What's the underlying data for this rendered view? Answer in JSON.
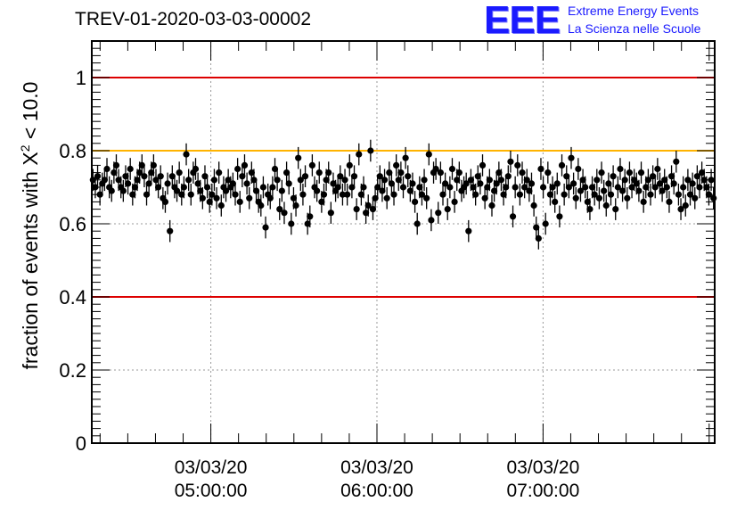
{
  "title": "TREV-01-2020-03-03-00002",
  "logo": {
    "mark": "EEE",
    "line1": "Extreme Energy Events",
    "line2": "La Scienza nelle Scuole"
  },
  "colors": {
    "red_line": "#dd0000",
    "orange_line": "#ffb300",
    "logo_blue": "#1a1aff",
    "grid": "#999999",
    "points": "#000000"
  },
  "chart_data": {
    "type": "scatter",
    "title": "TREV-01-2020-03-03-00002",
    "xlabel": "",
    "ylabel": "fraction of events with X² < 10.0",
    "ylabel_main": "fraction of events with X",
    "ylabel_sup": "2",
    "ylabel_tail": " < 10.0",
    "ylim": [
      0,
      1.1
    ],
    "yticks": [
      0,
      0.2,
      0.4,
      0.6,
      0.8,
      1
    ],
    "ytick_labels": [
      "0",
      "0.2",
      "0.4",
      "0.6",
      "0.8",
      "1"
    ],
    "xlim": [
      "2020-03-03 04:17",
      "2020-03-03 08:02"
    ],
    "xticks": [
      "2020-03-03 05:00",
      "2020-03-03 06:00",
      "2020-03-03 07:00"
    ],
    "xtick_labels": [
      [
        "03/03/20",
        "05:00:00"
      ],
      [
        "03/03/20",
        "06:00:00"
      ],
      [
        "03/03/20",
        "07:00:00"
      ]
    ],
    "reference_lines": [
      {
        "y": 1.0,
        "color": "#dd0000"
      },
      {
        "y": 0.8,
        "color": "#ffb300"
      },
      {
        "y": 0.4,
        "color": "#dd0000"
      }
    ],
    "grid": true,
    "error_bar": 0.03,
    "series": [
      {
        "x_start": "2020-03-03 04:17",
        "x_end": "2020-03-03 08:02",
        "y": [
          0.72,
          0.7,
          0.73,
          0.68,
          0.71,
          0.72,
          0.75,
          0.7,
          0.69,
          0.74,
          0.76,
          0.72,
          0.7,
          0.69,
          0.73,
          0.71,
          0.75,
          0.68,
          0.7,
          0.72,
          0.74,
          0.76,
          0.73,
          0.68,
          0.71,
          0.74,
          0.76,
          0.72,
          0.7,
          0.73,
          0.67,
          0.66,
          0.71,
          0.58,
          0.73,
          0.7,
          0.69,
          0.74,
          0.68,
          0.7,
          0.79,
          0.72,
          0.68,
          0.74,
          0.75,
          0.71,
          0.69,
          0.67,
          0.73,
          0.7,
          0.66,
          0.68,
          0.72,
          0.67,
          0.74,
          0.65,
          0.7,
          0.69,
          0.72,
          0.7,
          0.71,
          0.68,
          0.75,
          0.66,
          0.73,
          0.76,
          0.71,
          0.67,
          0.74,
          0.72,
          0.69,
          0.66,
          0.65,
          0.7,
          0.59,
          0.68,
          0.67,
          0.7,
          0.75,
          0.72,
          0.64,
          0.69,
          0.63,
          0.74,
          0.71,
          0.6,
          0.67,
          0.65,
          0.78,
          0.72,
          0.68,
          0.73,
          0.6,
          0.62,
          0.76,
          0.7,
          0.69,
          0.74,
          0.66,
          0.68,
          0.72,
          0.74,
          0.63,
          0.71,
          0.69,
          0.7,
          0.73,
          0.68,
          0.72,
          0.68,
          0.76,
          0.7,
          0.73,
          0.64,
          0.79,
          0.68,
          0.7,
          0.63,
          0.65,
          0.8,
          0.64,
          0.67,
          0.7,
          0.73,
          0.69,
          0.72,
          0.67,
          0.74,
          0.71,
          0.68,
          0.76,
          0.72,
          0.74,
          0.7,
          0.78,
          0.73,
          0.69,
          0.71,
          0.66,
          0.6,
          0.7,
          0.68,
          0.72,
          0.67,
          0.79,
          0.61,
          0.74,
          0.75,
          0.63,
          0.74,
          0.68,
          0.71,
          0.64,
          0.7,
          0.75,
          0.66,
          0.72,
          0.74,
          0.69,
          0.7,
          0.71,
          0.58,
          0.72,
          0.7,
          0.68,
          0.73,
          0.71,
          0.76,
          0.67,
          0.7,
          0.72,
          0.65,
          0.69,
          0.71,
          0.74,
          0.72,
          0.68,
          0.7,
          0.73,
          0.77,
          0.62,
          0.7,
          0.76,
          0.68,
          0.74,
          0.7,
          0.72,
          0.69,
          0.71,
          0.65,
          0.59,
          0.56,
          0.75,
          0.7,
          0.6,
          0.74,
          0.68,
          0.7,
          0.66,
          0.71,
          0.62,
          0.76,
          0.68,
          0.73,
          0.7,
          0.78,
          0.71,
          0.67,
          0.75,
          0.69,
          0.72,
          0.7,
          0.66,
          0.64,
          0.7,
          0.68,
          0.72,
          0.67,
          0.74,
          0.69,
          0.65,
          0.71,
          0.68,
          0.73,
          0.64,
          0.7,
          0.75,
          0.69,
          0.72,
          0.67,
          0.74,
          0.7,
          0.72,
          0.71,
          0.69,
          0.74,
          0.66,
          0.7,
          0.72,
          0.68,
          0.73,
          0.7,
          0.75,
          0.71,
          0.69,
          0.72,
          0.7,
          0.66,
          0.73,
          0.71,
          0.77,
          0.68,
          0.64,
          0.7,
          0.65,
          0.72,
          0.68,
          0.71,
          0.67,
          0.73,
          0.7,
          0.74,
          0.72,
          0.7,
          0.68,
          0.72,
          0.67
        ]
      }
    ]
  }
}
